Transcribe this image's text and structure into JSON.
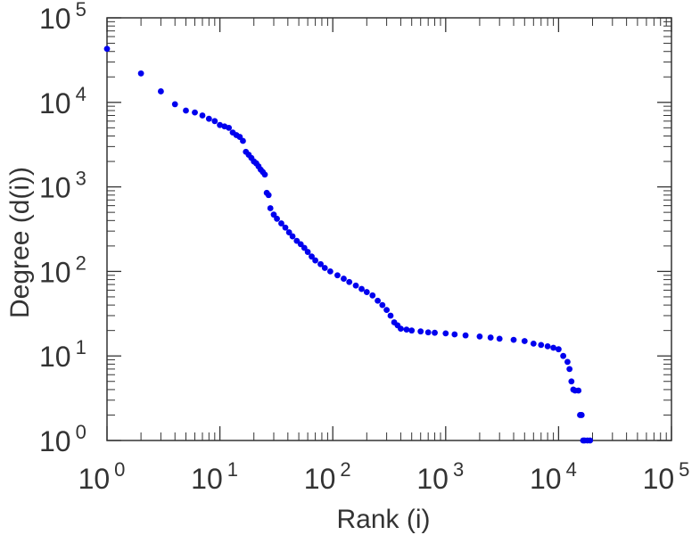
{
  "chart_data": {
    "type": "scatter",
    "title": "",
    "xlabel": "Rank (i)",
    "ylabel": "Degree (d(i))",
    "xscale": "log",
    "yscale": "log",
    "xlim": [
      1,
      100000
    ],
    "ylim": [
      1,
      100000
    ],
    "grid": false,
    "legend": "none",
    "marker_color": "#0000ee",
    "x_ticks": [
      {
        "base": "10",
        "exp": "0"
      },
      {
        "base": "10",
        "exp": "1"
      },
      {
        "base": "10",
        "exp": "2"
      },
      {
        "base": "10",
        "exp": "3"
      },
      {
        "base": "10",
        "exp": "4"
      },
      {
        "base": "10",
        "exp": "5"
      }
    ],
    "y_ticks": [
      {
        "base": "10",
        "exp": "0"
      },
      {
        "base": "10",
        "exp": "1"
      },
      {
        "base": "10",
        "exp": "2"
      },
      {
        "base": "10",
        "exp": "3"
      },
      {
        "base": "10",
        "exp": "4"
      },
      {
        "base": "10",
        "exp": "5"
      }
    ],
    "series": [
      {
        "points": [
          [
            1,
            43000
          ],
          [
            2,
            22000
          ],
          [
            3,
            13500
          ],
          [
            4,
            9500
          ],
          [
            5,
            8000
          ],
          [
            6,
            7600
          ],
          [
            7,
            7000
          ],
          [
            8,
            6400
          ],
          [
            9,
            6000
          ],
          [
            10,
            5400
          ],
          [
            11,
            5200
          ],
          [
            12,
            5000
          ],
          [
            13,
            4400
          ],
          [
            14,
            4100
          ],
          [
            15,
            3900
          ],
          [
            16,
            3500
          ],
          [
            17,
            2600
          ],
          [
            18,
            2400
          ],
          [
            19,
            2200
          ],
          [
            20,
            2000
          ],
          [
            21,
            1900
          ],
          [
            22,
            1750
          ],
          [
            23,
            1600
          ],
          [
            24,
            1500
          ],
          [
            25,
            1400
          ],
          [
            26,
            850
          ],
          [
            27,
            800
          ],
          [
            28,
            560
          ],
          [
            30,
            470
          ],
          [
            32,
            420
          ],
          [
            35,
            370
          ],
          [
            38,
            330
          ],
          [
            41,
            290
          ],
          [
            44,
            260
          ],
          [
            48,
            230
          ],
          [
            52,
            210
          ],
          [
            56,
            190
          ],
          [
            60,
            170
          ],
          [
            65,
            150
          ],
          [
            70,
            135
          ],
          [
            78,
            122
          ],
          [
            85,
            110
          ],
          [
            95,
            100
          ],
          [
            110,
            90
          ],
          [
            125,
            82
          ],
          [
            140,
            75
          ],
          [
            160,
            68
          ],
          [
            180,
            62
          ],
          [
            200,
            57
          ],
          [
            225,
            52
          ],
          [
            250,
            45
          ],
          [
            275,
            40
          ],
          [
            300,
            35
          ],
          [
            325,
            30
          ],
          [
            350,
            25
          ],
          [
            375,
            23
          ],
          [
            400,
            21
          ],
          [
            450,
            20.5
          ],
          [
            500,
            20
          ],
          [
            600,
            19.5
          ],
          [
            700,
            19
          ],
          [
            800,
            18.8
          ],
          [
            1000,
            18.5
          ],
          [
            1200,
            18
          ],
          [
            1500,
            17.5
          ],
          [
            2000,
            17
          ],
          [
            2500,
            16.5
          ],
          [
            3000,
            16
          ],
          [
            4000,
            15.5
          ],
          [
            5000,
            15
          ],
          [
            6000,
            14
          ],
          [
            7000,
            13.5
          ],
          [
            8000,
            13
          ],
          [
            9000,
            12.5
          ],
          [
            10000,
            12
          ],
          [
            11000,
            10
          ],
          [
            12000,
            8.5
          ],
          [
            12500,
            7
          ],
          [
            13000,
            5
          ],
          [
            13500,
            4
          ],
          [
            14000,
            3.9
          ],
          [
            15000,
            3.9
          ],
          [
            15500,
            2
          ],
          [
            16000,
            2
          ],
          [
            16500,
            1
          ],
          [
            17000,
            1
          ],
          [
            18000,
            1
          ],
          [
            19000,
            1
          ]
        ]
      }
    ]
  }
}
